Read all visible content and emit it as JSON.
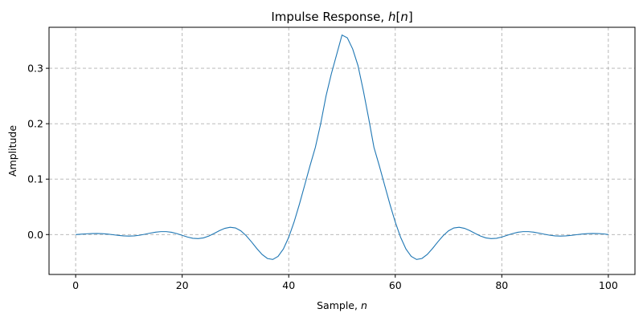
{
  "chart_data": {
    "type": "line",
    "title": "Impulse Response, h[n]",
    "title_parts": [
      "Impulse Response, ",
      "h",
      "[",
      "n",
      "]"
    ],
    "xlabel": "Sample, n",
    "xlabel_parts": [
      "Sample, ",
      "n"
    ],
    "ylabel": "Amplitude",
    "xlim": [
      -5,
      105
    ],
    "ylim": [
      -0.072,
      0.374
    ],
    "xticks": [
      0,
      20,
      40,
      60,
      80,
      100
    ],
    "xtick_labels": [
      "0",
      "20",
      "40",
      "60",
      "80",
      "100"
    ],
    "yticks": [
      0.0,
      0.1,
      0.2,
      0.3
    ],
    "ytick_labels": [
      "0.0",
      "0.1",
      "0.2",
      "0.3"
    ],
    "grid": true,
    "legend": false,
    "series": [
      {
        "color": "#1f77b4",
        "x": [
          0,
          1,
          2,
          3,
          4,
          5,
          6,
          7,
          8,
          9,
          10,
          11,
          12,
          13,
          14,
          15,
          16,
          17,
          18,
          19,
          20,
          21,
          22,
          23,
          24,
          25,
          26,
          27,
          28,
          29,
          30,
          31,
          32,
          33,
          34,
          35,
          36,
          37,
          38,
          39,
          40,
          41,
          42,
          43,
          44,
          45,
          46,
          47,
          48,
          49,
          50,
          51,
          52,
          53,
          54,
          55,
          56,
          57,
          58,
          59,
          60,
          61,
          62,
          63,
          64,
          65,
          66,
          67,
          68,
          69,
          70,
          71,
          72,
          73,
          74,
          75,
          76,
          77,
          78,
          79,
          80,
          81,
          82,
          83,
          84,
          85,
          86,
          87,
          88,
          89,
          90,
          91,
          92,
          93,
          94,
          95,
          96,
          97,
          98,
          99,
          100
        ],
        "y": [
          0.0,
          0.0006,
          0.0013,
          0.0018,
          0.0019,
          0.0016,
          0.0008,
          -0.0003,
          -0.0015,
          -0.0024,
          -0.0028,
          -0.0024,
          -0.0012,
          0.0006,
          0.0026,
          0.0043,
          0.0053,
          0.0053,
          0.0041,
          0.0017,
          -0.0014,
          -0.0045,
          -0.0067,
          -0.0073,
          -0.006,
          -0.0027,
          0.002,
          0.0071,
          0.0112,
          0.0131,
          0.0119,
          0.0068,
          -0.0019,
          -0.0131,
          -0.0251,
          -0.0359,
          -0.0432,
          -0.0449,
          -0.0394,
          -0.026,
          -0.0049,
          0.0225,
          0.0546,
          0.0893,
          0.1243,
          0.1573,
          0.2,
          0.25,
          0.29,
          0.325,
          0.36,
          0.355,
          0.335,
          0.305,
          0.26,
          0.21,
          0.1573,
          0.1243,
          0.0893,
          0.0546,
          0.0225,
          -0.0049,
          -0.026,
          -0.0394,
          -0.0449,
          -0.0432,
          -0.0359,
          -0.0251,
          -0.0131,
          -0.0019,
          0.0068,
          0.0119,
          0.0131,
          0.0112,
          0.0071,
          0.002,
          -0.0027,
          -0.006,
          -0.0073,
          -0.0067,
          -0.0045,
          -0.0014,
          0.0017,
          0.0041,
          0.0053,
          0.0053,
          0.0043,
          0.0026,
          0.0006,
          -0.0012,
          -0.0024,
          -0.0028,
          -0.0024,
          -0.0015,
          -0.0003,
          0.0008,
          0.0016,
          0.0019,
          0.0018,
          0.0013,
          0.0
        ]
      }
    ]
  }
}
